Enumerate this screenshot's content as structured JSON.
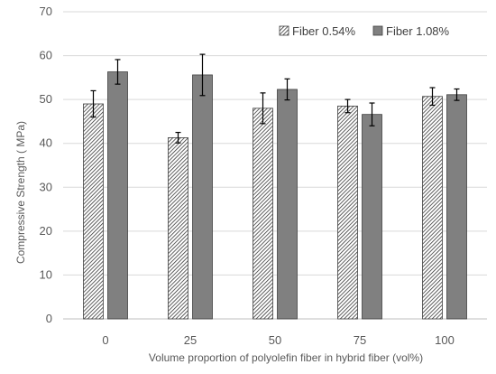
{
  "chart_data": {
    "type": "bar",
    "title": "",
    "xlabel": "Volume proportion of polyolefin fiber in hybrid fiber (vol%)",
    "ylabel": "Compressive Strength ( MPa)",
    "ylim": [
      0,
      70
    ],
    "yticks": [
      "0",
      "10",
      "20",
      "30",
      "40",
      "50",
      "60",
      "70"
    ],
    "categories": [
      "0",
      "25",
      "50",
      "75",
      "100"
    ],
    "grid": true,
    "legend_position": "top-right",
    "series": [
      {
        "name": "Fiber 0.54%",
        "pattern": "diagonal-hatch",
        "values": [
          49.0,
          41.3,
          48.0,
          48.5,
          50.7
        ],
        "errors": [
          3.0,
          1.2,
          3.5,
          1.5,
          2.0
        ]
      },
      {
        "name": "Fiber 1.08%",
        "pattern": "solid",
        "color": "#808080",
        "values": [
          56.3,
          55.6,
          52.3,
          46.6,
          51.1
        ],
        "errors": [
          2.8,
          4.7,
          2.4,
          2.6,
          1.3
        ]
      }
    ]
  }
}
